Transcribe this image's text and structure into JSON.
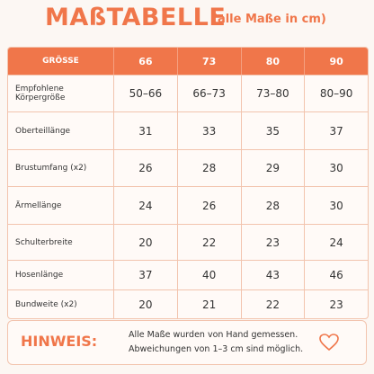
{
  "header": {
    "title": "MAßTABELLE",
    "subtitle": "(alle Maße in cm)"
  },
  "table": {
    "columns": [
      "GRÖSSE",
      "66",
      "73",
      "80",
      "90"
    ],
    "rows": [
      [
        "Empfohlene Körpergröße",
        "50–66",
        "66–73",
        "73–80",
        "80–90"
      ],
      [
        "Oberteillänge",
        "31",
        "33",
        "35",
        "37"
      ],
      [
        "Brustumfang (x2)",
        "26",
        "28",
        "29",
        "30"
      ],
      [
        "Ärmellänge",
        "24",
        "26",
        "28",
        "30"
      ],
      [
        "Schulterbreite",
        "20",
        "22",
        "23",
        "24"
      ],
      [
        "Hosenlänge",
        "37",
        "40",
        "43",
        "46"
      ],
      [
        "Bundweite (x2)",
        "20",
        "21",
        "22",
        "23"
      ]
    ]
  },
  "note": {
    "label": "HINWEIS:",
    "lines": [
      "Alle Maße wurden von Hand gemessen.",
      "Abweichungen von 1–3 cm sind möglich."
    ]
  }
}
